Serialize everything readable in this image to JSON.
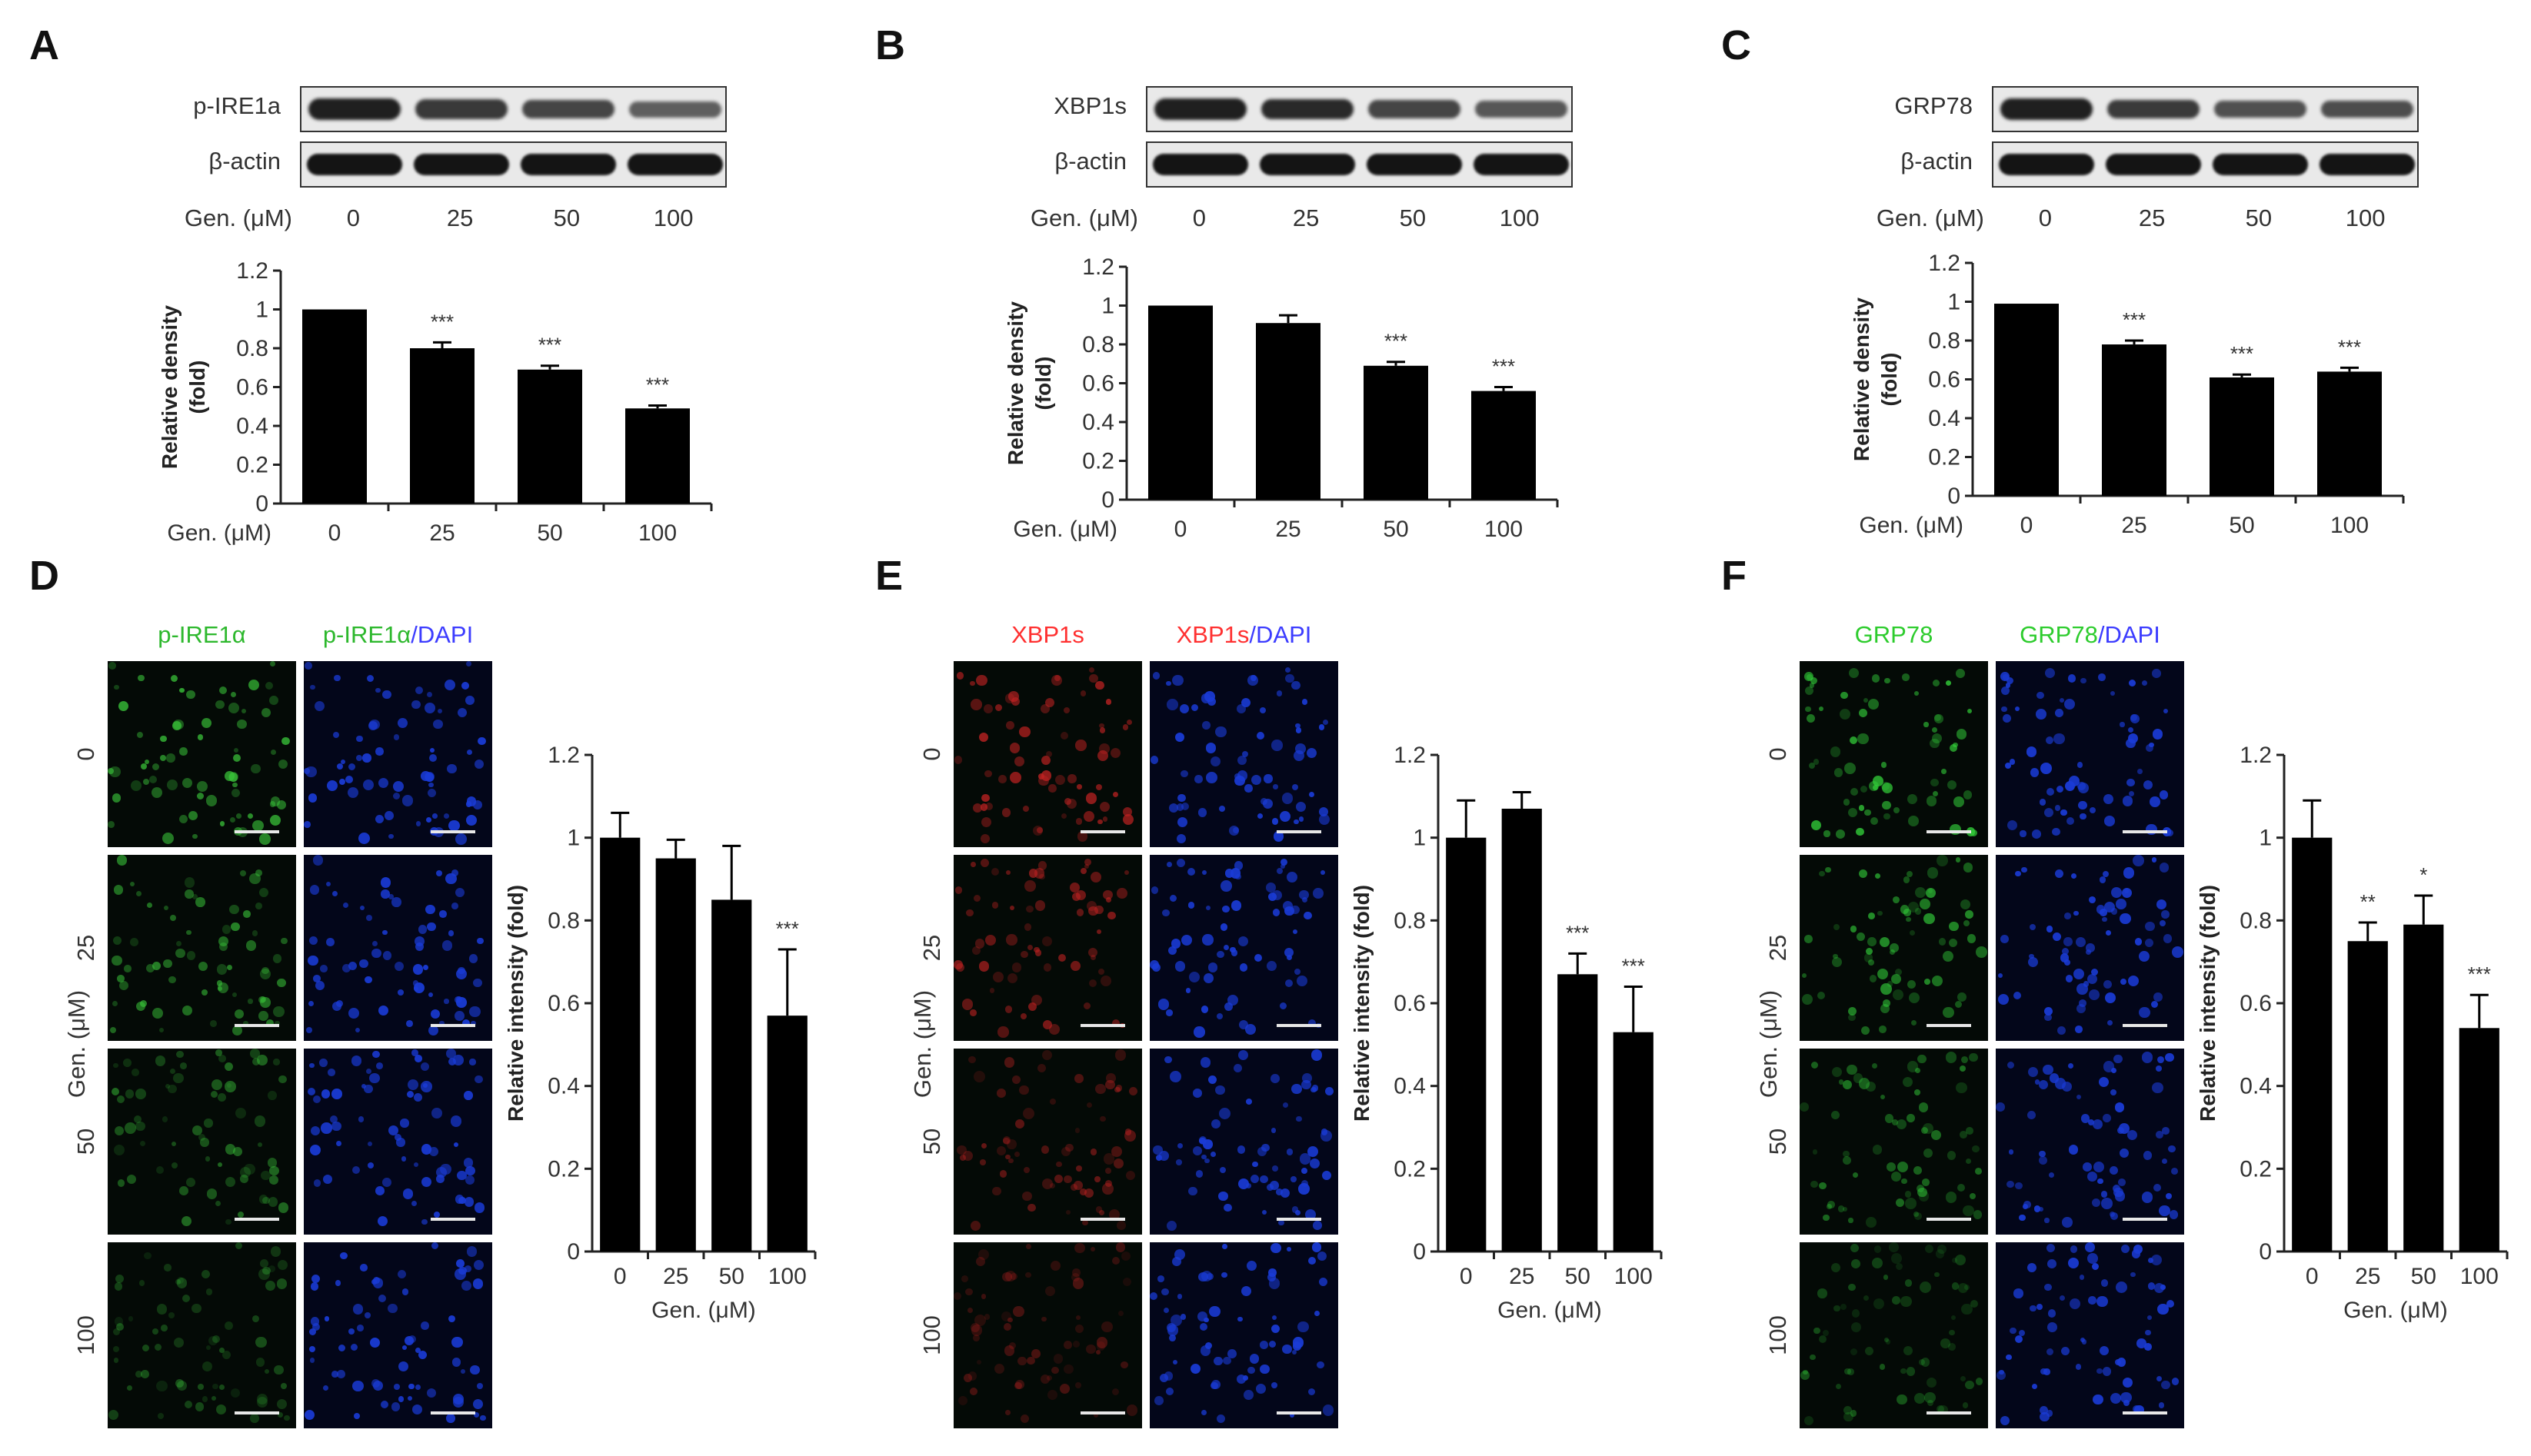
{
  "panel_labels": [
    "A",
    "B",
    "C",
    "D",
    "E",
    "F"
  ],
  "western": [
    {
      "target": "p-IRE1a",
      "loading": "β-actin",
      "dose_label": "Gen. (μM)",
      "doses": [
        "0",
        "25",
        "50",
        "100"
      ],
      "target_band_intensity": [
        1.0,
        0.8,
        0.7,
        0.5
      ]
    },
    {
      "target": "XBP1s",
      "loading": "β-actin",
      "dose_label": "Gen. (μM)",
      "doses": [
        "0",
        "25",
        "50",
        "100"
      ],
      "target_band_intensity": [
        1.0,
        0.92,
        0.7,
        0.56
      ]
    },
    {
      "target": "GRP78",
      "loading": "β-actin",
      "dose_label": "Gen. (μM)",
      "doses": [
        "0",
        "25",
        "50",
        "100"
      ],
      "target_band_intensity": [
        1.0,
        0.78,
        0.61,
        0.64
      ]
    }
  ],
  "micro": [
    {
      "label1": "p-IRE1α",
      "label2a": "p-IRE1α",
      "label2b": "/DAPI",
      "color1": "#2db82d",
      "color2": "#3c3cff",
      "signal": "#39c239",
      "ylabel": "Gen. (μM)",
      "doses": [
        "0",
        "25",
        "50",
        "100"
      ]
    },
    {
      "label1": "XBP1s",
      "label2a": "XBP1s",
      "label2b": "/DAPI",
      "color1": "#ff3030",
      "color2": "#3c3cff",
      "signal": "#c02222",
      "ylabel": "Gen. (μM)",
      "doses": [
        "0",
        "25",
        "50",
        "100"
      ]
    },
    {
      "label1": "GRP78",
      "label2a": "GRP78",
      "label2b": "/DAPI",
      "color1": "#2dcc2d",
      "color2": "#3c3cff",
      "signal": "#33d13a",
      "ylabel": "Gen. (μM)",
      "doses": [
        "0",
        "25",
        "50",
        "100"
      ]
    }
  ],
  "colors": {
    "bar": "#000000",
    "axis": "#222222",
    "blot_bg": "#e9e9e9",
    "band": "#141414",
    "micro_bg": "#06140a",
    "dapi": "#1a3bd6"
  },
  "chart_data": [
    {
      "type": "bar",
      "categories": [
        "0",
        "25",
        "50",
        "100"
      ],
      "values": [
        1.0,
        0.8,
        0.69,
        0.49
      ],
      "errors": [
        0.0,
        0.03,
        0.02,
        0.015
      ],
      "annotations": [
        "",
        "***",
        "***",
        "***"
      ],
      "xlabel": "Gen. (μM)",
      "ylabel": [
        "Relative density",
        "(fold)"
      ],
      "ylim": [
        0,
        1.2
      ],
      "yticks": [
        "0",
        "0.2",
        "0.4",
        "0.6",
        "0.8",
        "1",
        "1.2"
      ]
    },
    {
      "type": "bar",
      "categories": [
        "0",
        "25",
        "50",
        "100"
      ],
      "values": [
        1.0,
        0.91,
        0.69,
        0.56
      ],
      "errors": [
        0.0,
        0.04,
        0.02,
        0.02
      ],
      "annotations": [
        "",
        "",
        "***",
        "***"
      ],
      "xlabel": "Gen. (μM)",
      "ylabel": [
        "Relative density",
        "(fold)"
      ],
      "ylim": [
        0,
        1.2
      ],
      "yticks": [
        "0",
        "0.2",
        "0.4",
        "0.6",
        "0.8",
        "1",
        "1.2"
      ]
    },
    {
      "type": "bar",
      "categories": [
        "0",
        "25",
        "50",
        "100"
      ],
      "values": [
        0.99,
        0.78,
        0.61,
        0.64
      ],
      "errors": [
        0.0,
        0.02,
        0.015,
        0.02
      ],
      "annotations": [
        "",
        "***",
        "***",
        "***"
      ],
      "xlabel": "Gen. (μM)",
      "ylabel": [
        "Relative density",
        "(fold)"
      ],
      "ylim": [
        0,
        1.2
      ],
      "yticks": [
        "0",
        "0.2",
        "0.4",
        "0.6",
        "0.8",
        "1",
        "1.2"
      ]
    },
    {
      "type": "bar",
      "categories": [
        "0",
        "25",
        "50",
        "100"
      ],
      "values": [
        1.0,
        0.95,
        0.85,
        0.57
      ],
      "errors": [
        0.06,
        0.045,
        0.13,
        0.16
      ],
      "annotations": [
        "",
        "",
        "",
        "***"
      ],
      "xlabel": "Gen. (μM)",
      "ylabel": "Relative intensity (fold)",
      "ylim": [
        0,
        1.2
      ],
      "yticks": [
        "0",
        "0.2",
        "0.4",
        "0.6",
        "0.8",
        "1",
        "1.2"
      ]
    },
    {
      "type": "bar",
      "categories": [
        "0",
        "25",
        "50",
        "100"
      ],
      "values": [
        1.0,
        1.07,
        0.67,
        0.53
      ],
      "errors": [
        0.09,
        0.04,
        0.05,
        0.11
      ],
      "annotations": [
        "",
        "",
        "***",
        "***"
      ],
      "xlabel": "Gen. (μM)",
      "ylabel": "Relative intensity (fold)",
      "ylim": [
        0,
        1.2
      ],
      "yticks": [
        "0",
        "0.2",
        "0.4",
        "0.6",
        "0.8",
        "1",
        "1.2"
      ]
    },
    {
      "type": "bar",
      "categories": [
        "0",
        "25",
        "50",
        "100"
      ],
      "values": [
        1.0,
        0.75,
        0.79,
        0.54
      ],
      "errors": [
        0.09,
        0.045,
        0.07,
        0.08
      ],
      "annotations": [
        "",
        "**",
        "*",
        "***"
      ],
      "xlabel": "Gen. (μM)",
      "ylabel": "Relative intensity (fold)",
      "ylim": [
        0,
        1.2
      ],
      "yticks": [
        "0",
        "0.2",
        "0.4",
        "0.6",
        "0.8",
        "1",
        "1.2"
      ]
    }
  ]
}
